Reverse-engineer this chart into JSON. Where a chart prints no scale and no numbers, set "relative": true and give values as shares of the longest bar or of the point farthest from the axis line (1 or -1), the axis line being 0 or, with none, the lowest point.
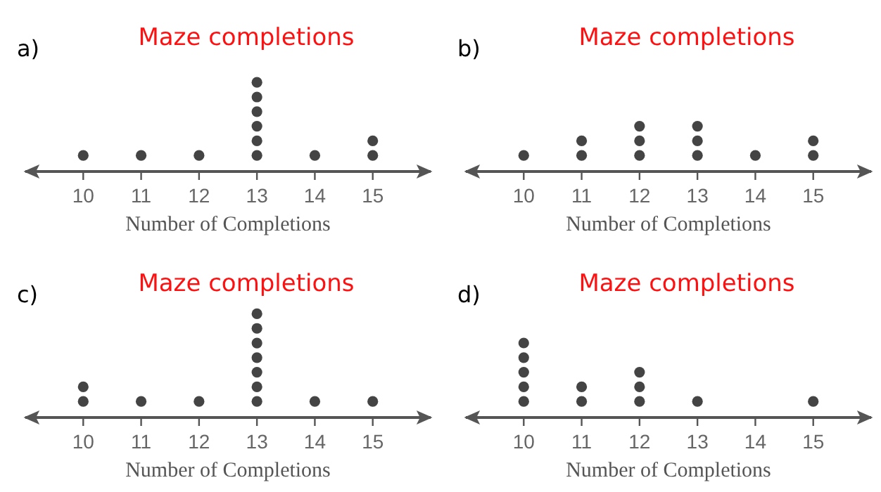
{
  "chart_data": [
    {
      "type": "scatter",
      "title": "Maze completions",
      "xlabel": "Number of Completions",
      "annotations": [
        "a)"
      ],
      "x": [
        10,
        11,
        12,
        13,
        13,
        13,
        13,
        13,
        13,
        14,
        15,
        15
      ],
      "values": [
        0.1667,
        0.1667,
        0.1667,
        0.1667,
        0.3333,
        0.5,
        0.6667,
        0.8333,
        1,
        0.1667,
        0.1667,
        0.3333
      ],
      "relative": true,
      "color": "#444444",
      "marker": "circle",
      "xlim": [
        9,
        16
      ],
      "xticks": [
        10,
        11,
        12,
        13,
        14,
        15
      ],
      "tick_labels": "x"
    },
    {
      "type": "scatter",
      "title": "Maze completions",
      "xlabel": "Number of Completions",
      "annotations": [
        "b)"
      ],
      "x": [
        10,
        11,
        11,
        12,
        12,
        12,
        13,
        13,
        13,
        14,
        15,
        15
      ],
      "values": [
        0.3333,
        0.3333,
        0.6667,
        0.3333,
        0.6667,
        1,
        0.3333,
        0.6667,
        1,
        0.3333,
        0.3333,
        0.6667
      ],
      "relative": true,
      "color": "#444444",
      "marker": "circle",
      "xlim": [
        9,
        16
      ],
      "xticks": [
        10,
        11,
        12,
        13,
        14,
        15
      ],
      "tick_labels": "x"
    },
    {
      "type": "scatter",
      "title": "Maze completions",
      "xlabel": "Number of Completions",
      "annotations": [
        "c)"
      ],
      "x": [
        10,
        10,
        11,
        12,
        13,
        13,
        13,
        13,
        13,
        13,
        13,
        14,
        15
      ],
      "values": [
        0.1429,
        0.2857,
        0.1429,
        0.1429,
        0.1429,
        0.2857,
        0.4286,
        0.5714,
        0.7143,
        0.8571,
        1,
        0.1429,
        0.1429
      ],
      "relative": true,
      "color": "#444444",
      "marker": "circle",
      "xlim": [
        9,
        16
      ],
      "xticks": [
        10,
        11,
        12,
        13,
        14,
        15
      ],
      "tick_labels": "x"
    },
    {
      "type": "scatter",
      "title": "Maze completions",
      "xlabel": "Number of Completions",
      "annotations": [
        "d)"
      ],
      "x": [
        10,
        10,
        10,
        10,
        10,
        11,
        11,
        12,
        12,
        12,
        13,
        15
      ],
      "values": [
        0.2,
        0.4,
        0.6,
        0.8,
        1,
        0.2,
        0.4,
        0.2,
        0.4,
        0.6,
        0.2,
        0.2
      ],
      "relative": true,
      "color": "#444444",
      "marker": "circle",
      "xlim": [
        9,
        16
      ],
      "xticks": [
        10,
        11,
        12,
        13,
        14,
        15
      ],
      "tick_labels": "x"
    }
  ]
}
